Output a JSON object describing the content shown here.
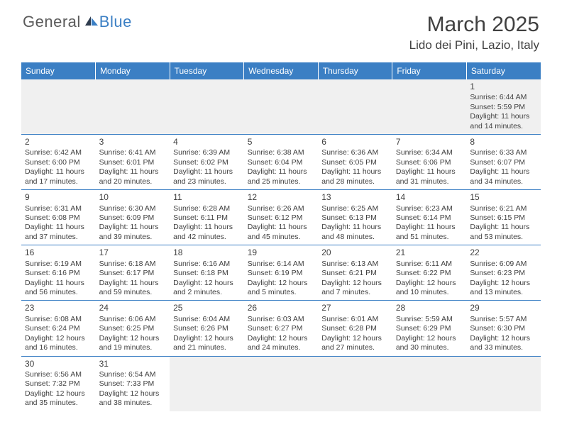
{
  "logo": {
    "text1": "General",
    "text2": "Blue"
  },
  "title": "March 2025",
  "location": "Lido dei Pini, Lazio, Italy",
  "colors": {
    "header_bg": "#3b7fc4",
    "header_text": "#ffffff",
    "body_text": "#404040",
    "empty_bg": "#f0f0f0",
    "border": "#3b7fc4"
  },
  "day_names": [
    "Sunday",
    "Monday",
    "Tuesday",
    "Wednesday",
    "Thursday",
    "Friday",
    "Saturday"
  ],
  "weeks": [
    [
      null,
      null,
      null,
      null,
      null,
      null,
      {
        "n": "1",
        "sr": "6:44 AM",
        "ss": "5:59 PM",
        "dl": "11 hours and 14 minutes."
      }
    ],
    [
      {
        "n": "2",
        "sr": "6:42 AM",
        "ss": "6:00 PM",
        "dl": "11 hours and 17 minutes."
      },
      {
        "n": "3",
        "sr": "6:41 AM",
        "ss": "6:01 PM",
        "dl": "11 hours and 20 minutes."
      },
      {
        "n": "4",
        "sr": "6:39 AM",
        "ss": "6:02 PM",
        "dl": "11 hours and 23 minutes."
      },
      {
        "n": "5",
        "sr": "6:38 AM",
        "ss": "6:04 PM",
        "dl": "11 hours and 25 minutes."
      },
      {
        "n": "6",
        "sr": "6:36 AM",
        "ss": "6:05 PM",
        "dl": "11 hours and 28 minutes."
      },
      {
        "n": "7",
        "sr": "6:34 AM",
        "ss": "6:06 PM",
        "dl": "11 hours and 31 minutes."
      },
      {
        "n": "8",
        "sr": "6:33 AM",
        "ss": "6:07 PM",
        "dl": "11 hours and 34 minutes."
      }
    ],
    [
      {
        "n": "9",
        "sr": "6:31 AM",
        "ss": "6:08 PM",
        "dl": "11 hours and 37 minutes."
      },
      {
        "n": "10",
        "sr": "6:30 AM",
        "ss": "6:09 PM",
        "dl": "11 hours and 39 minutes."
      },
      {
        "n": "11",
        "sr": "6:28 AM",
        "ss": "6:11 PM",
        "dl": "11 hours and 42 minutes."
      },
      {
        "n": "12",
        "sr": "6:26 AM",
        "ss": "6:12 PM",
        "dl": "11 hours and 45 minutes."
      },
      {
        "n": "13",
        "sr": "6:25 AM",
        "ss": "6:13 PM",
        "dl": "11 hours and 48 minutes."
      },
      {
        "n": "14",
        "sr": "6:23 AM",
        "ss": "6:14 PM",
        "dl": "11 hours and 51 minutes."
      },
      {
        "n": "15",
        "sr": "6:21 AM",
        "ss": "6:15 PM",
        "dl": "11 hours and 53 minutes."
      }
    ],
    [
      {
        "n": "16",
        "sr": "6:19 AM",
        "ss": "6:16 PM",
        "dl": "11 hours and 56 minutes."
      },
      {
        "n": "17",
        "sr": "6:18 AM",
        "ss": "6:17 PM",
        "dl": "11 hours and 59 minutes."
      },
      {
        "n": "18",
        "sr": "6:16 AM",
        "ss": "6:18 PM",
        "dl": "12 hours and 2 minutes."
      },
      {
        "n": "19",
        "sr": "6:14 AM",
        "ss": "6:19 PM",
        "dl": "12 hours and 5 minutes."
      },
      {
        "n": "20",
        "sr": "6:13 AM",
        "ss": "6:21 PM",
        "dl": "12 hours and 7 minutes."
      },
      {
        "n": "21",
        "sr": "6:11 AM",
        "ss": "6:22 PM",
        "dl": "12 hours and 10 minutes."
      },
      {
        "n": "22",
        "sr": "6:09 AM",
        "ss": "6:23 PM",
        "dl": "12 hours and 13 minutes."
      }
    ],
    [
      {
        "n": "23",
        "sr": "6:08 AM",
        "ss": "6:24 PM",
        "dl": "12 hours and 16 minutes."
      },
      {
        "n": "24",
        "sr": "6:06 AM",
        "ss": "6:25 PM",
        "dl": "12 hours and 19 minutes."
      },
      {
        "n": "25",
        "sr": "6:04 AM",
        "ss": "6:26 PM",
        "dl": "12 hours and 21 minutes."
      },
      {
        "n": "26",
        "sr": "6:03 AM",
        "ss": "6:27 PM",
        "dl": "12 hours and 24 minutes."
      },
      {
        "n": "27",
        "sr": "6:01 AM",
        "ss": "6:28 PM",
        "dl": "12 hours and 27 minutes."
      },
      {
        "n": "28",
        "sr": "5:59 AM",
        "ss": "6:29 PM",
        "dl": "12 hours and 30 minutes."
      },
      {
        "n": "29",
        "sr": "5:57 AM",
        "ss": "6:30 PM",
        "dl": "12 hours and 33 minutes."
      }
    ],
    [
      {
        "n": "30",
        "sr": "6:56 AM",
        "ss": "7:32 PM",
        "dl": "12 hours and 35 minutes."
      },
      {
        "n": "31",
        "sr": "6:54 AM",
        "ss": "7:33 PM",
        "dl": "12 hours and 38 minutes."
      },
      null,
      null,
      null,
      null,
      null
    ]
  ],
  "labels": {
    "sunrise": "Sunrise:",
    "sunset": "Sunset:",
    "daylight": "Daylight:"
  }
}
